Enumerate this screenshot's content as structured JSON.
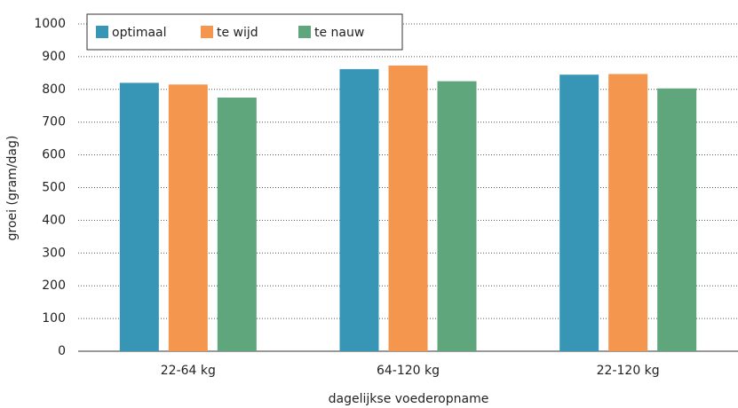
{
  "chart_data": {
    "type": "bar",
    "x_label": "dagelijkse voederopname",
    "y_label": "groei (gram/dag)",
    "categories": [
      "22-64 kg",
      "64-120 kg",
      "22-120 kg"
    ],
    "series": [
      {
        "name": "optimaal",
        "color": "#3795b5",
        "values": [
          820,
          862,
          845
        ]
      },
      {
        "name": "te wijd",
        "color": "#f5964f",
        "values": [
          815,
          873,
          847
        ]
      },
      {
        "name": "te nauw",
        "color": "#5fa67c",
        "values": [
          775,
          825,
          803
        ]
      }
    ],
    "ylim": [
      0,
      1000
    ],
    "yticks": [
      0,
      100,
      200,
      300,
      400,
      500,
      600,
      700,
      800,
      900,
      1000
    ],
    "grid": true,
    "legend": "top-left"
  }
}
